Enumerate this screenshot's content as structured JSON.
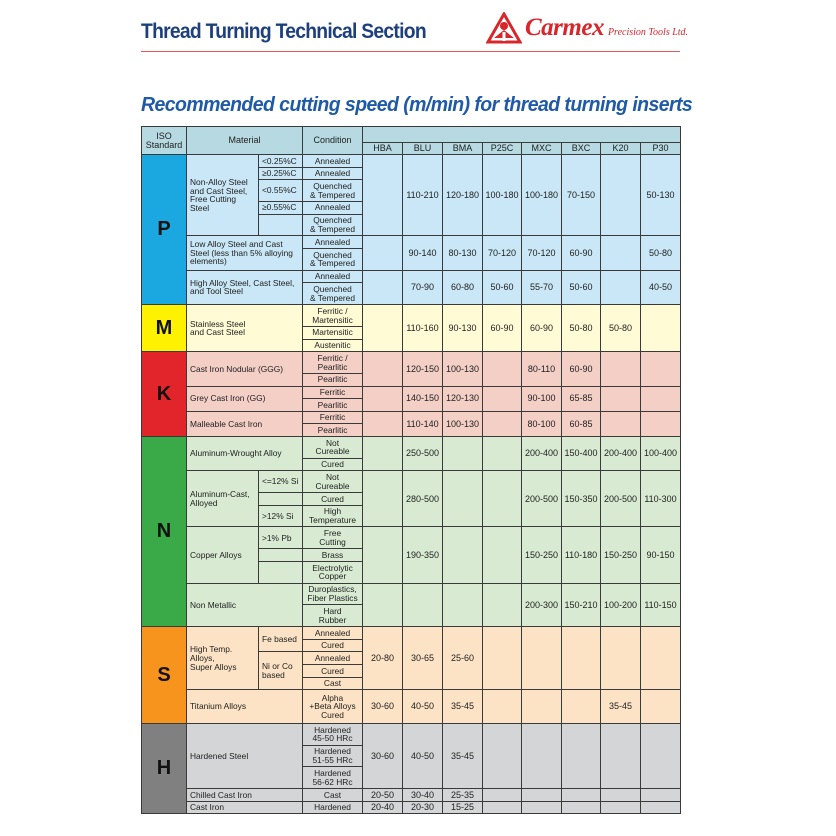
{
  "header": {
    "title": "Thread Turning Technical Section"
  },
  "logo": {
    "name": "Carmex",
    "tagline": "Precision Tools Ltd.",
    "color": "#d8262b"
  },
  "subtitle": "Recommended cutting speed (m/min) for thread turning inserts",
  "table": {
    "headers": {
      "iso": "ISO\nStandard",
      "material": "Material",
      "condition": "Condition"
    },
    "grades": [
      "HBA",
      "BLU",
      "BMA",
      "P25C",
      "MXC",
      "BXC",
      "K20",
      "P30"
    ],
    "groups": [
      {
        "letter": "P",
        "color": "#1ba8e0",
        "bg": "#c9e7f6",
        "materials": [
          {
            "name": "Non-Alloy Steel\nand Cast Steel,\nFree Cutting Steel",
            "subs": [
              {
                "label": "<0.25%C",
                "conds": [
                  "Annealed"
                ]
              },
              {
                "label": "≥0.25%C",
                "conds": [
                  "Annealed"
                ]
              },
              {
                "label": "<0.55%C",
                "conds": [
                  "Quenched\n& Tempered"
                ]
              },
              {
                "label": "≥0.55%C",
                "conds": [
                  "Annealed"
                ]
              },
              {
                "label": "",
                "conds": [
                  "Quenched\n& Tempered"
                ]
              }
            ],
            "values": [
              "",
              "110-210",
              "120-180",
              "100-180",
              "100-180",
              "70-150",
              "",
              "50-130"
            ]
          },
          {
            "name": "Low Alloy Steel and Cast\nSteel (less than 5% alloying\nelements)",
            "conds": [
              "Annealed",
              "Quenched\n& Tempered"
            ],
            "values": [
              "",
              "90-140",
              "80-130",
              "70-120",
              "70-120",
              "60-90",
              "",
              "50-80"
            ]
          },
          {
            "name": "High Alloy Steel, Cast Steel,\nand Tool Steel",
            "conds": [
              "Annealed",
              "Quenched\n& Tempered"
            ],
            "values": [
              "",
              "70-90",
              "60-80",
              "50-60",
              "55-70",
              "50-60",
              "",
              "40-50"
            ]
          }
        ]
      },
      {
        "letter": "M",
        "color": "#fff200",
        "bg": "#fffbd5",
        "materials": [
          {
            "name": "Stainless Steel\nand Cast Steel",
            "conds": [
              "Ferritic /\nMartensitic",
              "Martensitic",
              "Austenitic"
            ],
            "values": [
              "",
              "110-160",
              "90-130",
              "60-90",
              "60-90",
              "50-80",
              "50-80",
              ""
            ]
          }
        ]
      },
      {
        "letter": "K",
        "color": "#e2242b",
        "bg": "#f3cfc6",
        "materials": [
          {
            "name": "Cast Iron Nodular (GGG)",
            "conds": [
              "Ferritic /\nPearlitic",
              "Pearlitic"
            ],
            "values": [
              "",
              "120-150",
              "100-130",
              "",
              "80-110",
              "60-90",
              "",
              ""
            ]
          },
          {
            "name": "Grey Cast Iron (GG)",
            "conds": [
              "Ferritic",
              "Pearlitic"
            ],
            "values": [
              "",
              "140-150",
              "120-130",
              "",
              "90-100",
              "65-85",
              "",
              ""
            ]
          },
          {
            "name": "Malleable Cast Iron",
            "conds": [
              "Ferritic",
              "Pearlitic"
            ],
            "values": [
              "",
              "110-140",
              "100-130",
              "",
              "80-100",
              "60-85",
              "",
              ""
            ]
          }
        ]
      },
      {
        "letter": "N",
        "color": "#3aa948",
        "bg": "#d8ebd2",
        "materials": [
          {
            "name": "Aluminum-Wrought Alloy",
            "conds": [
              "Not\nCureable",
              "Cured"
            ],
            "values": [
              "",
              "250-500",
              "",
              "",
              "200-400",
              "150-400",
              "200-400",
              "100-400"
            ]
          },
          {
            "name": "Aluminum-Cast,\nAlloyed",
            "subs": [
              {
                "label": "<=12% Si",
                "conds": [
                  "Not\nCureable"
                ]
              },
              {
                "label": "",
                "conds": [
                  "Cured"
                ]
              },
              {
                "label": ">12% Si",
                "conds": [
                  "High\nTemperature"
                ]
              }
            ],
            "values": [
              "",
              "280-500",
              "",
              "",
              "200-500",
              "150-350",
              "200-500",
              "110-300"
            ]
          },
          {
            "name": "Copper Alloys",
            "subs": [
              {
                "label": ">1% Pb",
                "conds": [
                  "Free\nCutting"
                ]
              },
              {
                "label": "",
                "conds": [
                  "Brass"
                ]
              },
              {
                "label": "",
                "conds": [
                  "Electrolytic\nCopper"
                ]
              }
            ],
            "values": [
              "",
              "190-350",
              "",
              "",
              "150-250",
              "110-180",
              "150-250",
              "90-150"
            ]
          },
          {
            "name": "Non Metallic",
            "conds": [
              "Duroplastics,\nFiber Plastics",
              "Hard\nRubber"
            ],
            "values": [
              "",
              "",
              "",
              "",
              "200-300",
              "150-210",
              "100-200",
              "110-150"
            ]
          }
        ]
      },
      {
        "letter": "S",
        "color": "#f7941d",
        "bg": "#fde3c5",
        "materials": [
          {
            "name": "High Temp. Alloys,\nSuper Alloys",
            "subs": [
              {
                "label": "Fe based",
                "conds": [
                  "Annealed",
                  "Cured"
                ]
              },
              {
                "label": "Ni or Co\nbased",
                "conds": [
                  "Annealed",
                  "Cured",
                  "Cast"
                ]
              }
            ],
            "values": [
              "20-80",
              "30-65",
              "25-60",
              "",
              "",
              "",
              "",
              ""
            ]
          },
          {
            "name": "Titanium Alloys",
            "conds": [
              "Alpha\n+Beta Alloys\nCured"
            ],
            "values": [
              "30-60",
              "40-50",
              "35-45",
              "",
              "",
              "",
              "35-45",
              ""
            ]
          }
        ]
      },
      {
        "letter": "H",
        "color": "#808080",
        "bg": "#d4d5d6",
        "materials": [
          {
            "name": "Hardened Steel",
            "conds": [
              "Hardened\n45-50 HRc",
              "Hardened\n51-55 HRc",
              "Hardened\n56-62 HRc"
            ],
            "values": [
              "30-60",
              "40-50",
              "35-45",
              "",
              "",
              "",
              "",
              ""
            ]
          },
          {
            "name": "Chilled Cast Iron",
            "conds": [
              "Cast"
            ],
            "values": [
              "20-50",
              "30-40",
              "25-35",
              "",
              "",
              "",
              "",
              ""
            ]
          },
          {
            "name": "Cast Iron",
            "conds": [
              "Hardened"
            ],
            "values": [
              "20-40",
              "20-30",
              "15-25",
              "",
              "",
              "",
              "",
              ""
            ]
          }
        ]
      }
    ]
  }
}
